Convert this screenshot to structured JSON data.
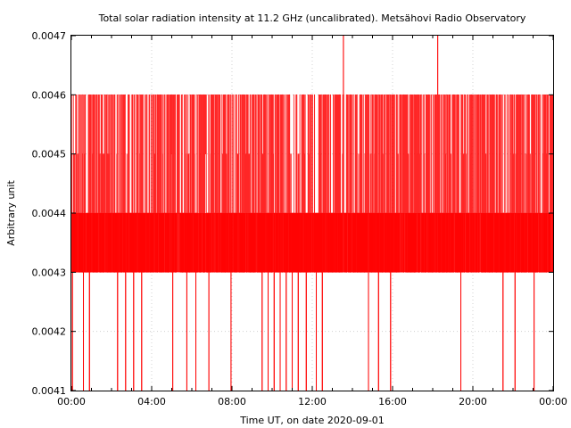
{
  "chart_data": {
    "type": "line",
    "title": "Total solar radiation intensity at 11.2 GHz (uncalibrated). Metsähovi Radio Observatory",
    "xlabel": "Time UT, on date 2020-09-01",
    "ylabel": "Arbitrary unit",
    "xlim": [
      0,
      24
    ],
    "ylim": [
      0.0041,
      0.0047
    ],
    "x_tick_values": [
      0,
      4,
      8,
      12,
      16,
      20,
      24
    ],
    "x_tick_labels": [
      "00:00",
      "04:00",
      "08:00",
      "12:00",
      "16:00",
      "20:00",
      "00:00"
    ],
    "y_tick_values": [
      0.0041,
      0.0042,
      0.0043,
      0.0044,
      0.0045,
      0.0046,
      0.0047
    ],
    "y_tick_labels": [
      "0.0041",
      "0.0042",
      "0.0043",
      "0.0044",
      "0.0045",
      "0.0046",
      "0.0047"
    ],
    "grid": true,
    "series": [
      {
        "color": "#ff0000",
        "quantization_step": 0.0001,
        "dominant_band": [
          0.0043,
          0.0044
        ],
        "frequent_upper_level": 0.0046,
        "spikes": [
          {
            "x": 13.55,
            "y": 0.0047
          },
          {
            "x": 18.25,
            "y": 0.0047
          }
        ],
        "dips_to_min": [
          {
            "x": 0.05,
            "y": 0.0041
          },
          {
            "x": 0.6,
            "y": 0.0041
          },
          {
            "x": 0.9,
            "y": 0.0041
          },
          {
            "x": 2.3,
            "y": 0.0041
          },
          {
            "x": 2.7,
            "y": 0.0041
          },
          {
            "x": 3.1,
            "y": 0.0041
          },
          {
            "x": 3.5,
            "y": 0.0041
          },
          {
            "x": 5.05,
            "y": 0.0041
          },
          {
            "x": 5.75,
            "y": 0.0041
          },
          {
            "x": 6.2,
            "y": 0.0041
          },
          {
            "x": 6.85,
            "y": 0.0041
          },
          {
            "x": 7.95,
            "y": 0.0041
          },
          {
            "x": 9.5,
            "y": 0.0041
          },
          {
            "x": 9.8,
            "y": 0.0041
          },
          {
            "x": 10.1,
            "y": 0.0041
          },
          {
            "x": 10.4,
            "y": 0.0041
          },
          {
            "x": 10.7,
            "y": 0.0041
          },
          {
            "x": 11.0,
            "y": 0.0041
          },
          {
            "x": 11.3,
            "y": 0.0041
          },
          {
            "x": 11.7,
            "y": 0.0041
          },
          {
            "x": 12.2,
            "y": 0.0041
          },
          {
            "x": 12.5,
            "y": 0.0041
          },
          {
            "x": 14.8,
            "y": 0.0041
          },
          {
            "x": 15.3,
            "y": 0.0041
          },
          {
            "x": 15.9,
            "y": 0.0041
          },
          {
            "x": 19.4,
            "y": 0.0041
          },
          {
            "x": 21.5,
            "y": 0.0041
          },
          {
            "x": 22.1,
            "y": 0.0041
          },
          {
            "x": 23.05,
            "y": 0.0041
          }
        ]
      }
    ]
  }
}
